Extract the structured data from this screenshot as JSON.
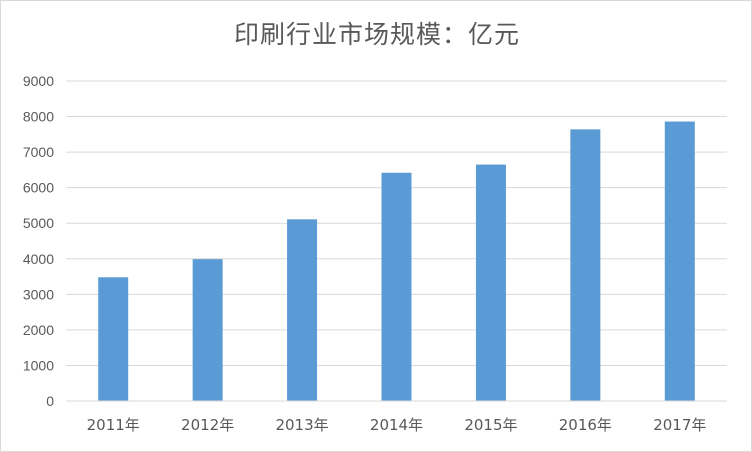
{
  "chart_data": {
    "type": "bar",
    "title": "印刷行业市场规模：亿元",
    "categories": [
      "2011年",
      "2012年",
      "2013年",
      "2014年",
      "2015年",
      "2016年",
      "2017年"
    ],
    "values": [
      3480,
      3990,
      5110,
      6420,
      6650,
      7640,
      7860
    ],
    "ylim": [
      0,
      9000
    ],
    "yticks": [
      0,
      1000,
      2000,
      3000,
      4000,
      5000,
      6000,
      7000,
      8000,
      9000
    ],
    "grid": true,
    "bar_color": "#5b9bd5",
    "grid_color": "#d9d9d9",
    "text_color": "#595959"
  }
}
